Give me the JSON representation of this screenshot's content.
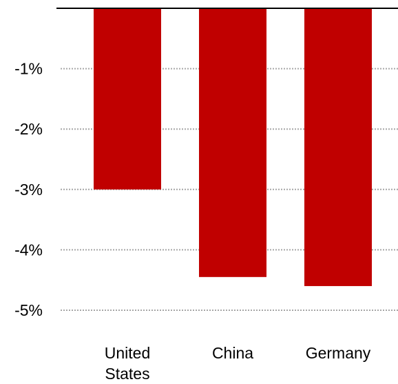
{
  "chart_data": {
    "type": "bar",
    "categories": [
      "United States",
      "China",
      "Germany"
    ],
    "category_label_lines": [
      [
        "United",
        "States"
      ],
      [
        "China"
      ],
      [
        "Germany"
      ]
    ],
    "values": [
      -3.0,
      -4.45,
      -4.6
    ],
    "unit": "%",
    "ylim": [
      -5,
      0
    ],
    "y_ticks": [
      -1,
      -2,
      -3,
      -4,
      -5
    ],
    "y_tick_labels": [
      "-1%",
      "-2%",
      "-3%",
      "-4%",
      "-5%"
    ],
    "grid": "dotted horizontal",
    "legend": "none",
    "title": "",
    "xlabel": "",
    "ylabel": ""
  },
  "colors": {
    "bar": "#c00000",
    "grid": "#a6a6a6",
    "axis": "#000000",
    "text": "#000000"
  }
}
